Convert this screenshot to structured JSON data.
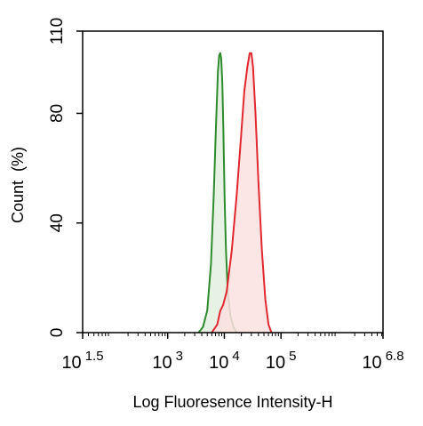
{
  "chart_data": {
    "type": "area",
    "title": "",
    "xlabel": "Log Fluoresence Intensity-H",
    "ylabel": "Count  (%)",
    "x_scale": "log",
    "xlim": [
      31.6,
      6310000
    ],
    "ylim": [
      0,
      110
    ],
    "grid": false,
    "legend": "none",
    "x_ticks": [
      {
        "base": "10",
        "exp": "1.5",
        "value": 31.6
      },
      {
        "base": "10",
        "exp": "3",
        "value": 1000
      },
      {
        "base": "10",
        "exp": "4",
        "value": 10000
      },
      {
        "base": "10",
        "exp": "5",
        "value": 100000
      },
      {
        "base": "10",
        "exp": "6.8",
        "value": 6310000
      }
    ],
    "y_ticks": [
      0,
      40,
      80,
      110
    ],
    "series": [
      {
        "color": "#2e8b2e",
        "fill": "#e3f0e0",
        "x": [
          3500,
          4200,
          5000,
          5800,
          6500,
          7100,
          7700,
          8100,
          8500,
          8800,
          9200,
          9600,
          10100,
          10700,
          11500,
          12800,
          14500,
          16500
        ],
        "y": [
          0,
          2,
          8,
          25,
          50,
          75,
          95,
          101,
          102,
          100,
          92,
          75,
          50,
          30,
          15,
          6,
          2,
          0
        ]
      },
      {
        "color": "#e0282e",
        "fill": "#fbe1e1",
        "x": [
          6000,
          7500,
          8500,
          9500,
          11000,
          13500,
          16500,
          19500,
          22500,
          25500,
          28000,
          30000,
          32000,
          35500,
          40000,
          46000,
          53000,
          60000,
          68000
        ],
        "y": [
          0,
          3,
          8,
          10,
          15,
          30,
          50,
          70,
          88,
          97,
          102,
          102,
          97,
          80,
          55,
          30,
          12,
          3,
          0
        ]
      }
    ]
  }
}
